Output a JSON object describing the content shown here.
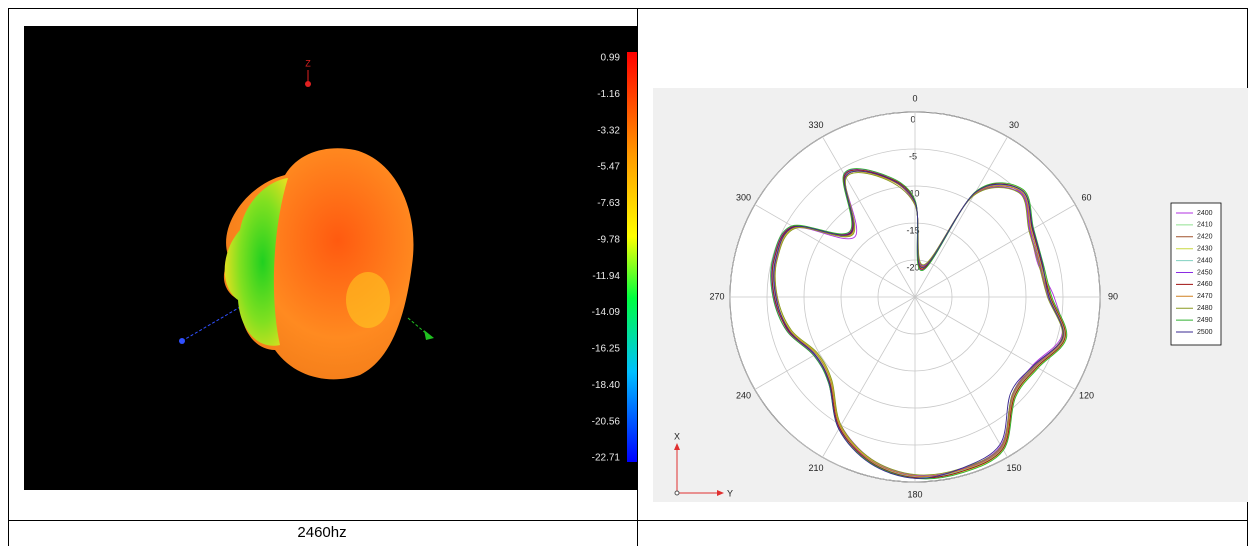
{
  "left_panel": {
    "axis_label": "Z",
    "colorbar_labels": [
      "0.99",
      "-1.16",
      "-3.32",
      "-5.47",
      "-7.63",
      "-9.78",
      "-11.94",
      "-14.09",
      "-16.25",
      "-18.40",
      "-20.56",
      "-22.71"
    ]
  },
  "caption": "2460hz",
  "chart_data": {
    "type": "polar",
    "theta": [
      0,
      15,
      30,
      45,
      60,
      75,
      90,
      105,
      120,
      135,
      150,
      165,
      180,
      195,
      210,
      225,
      240,
      255,
      270,
      285,
      300,
      315,
      330,
      345
    ],
    "angle_ticks": [
      0,
      30,
      60,
      90,
      120,
      150,
      180,
      210,
      240,
      270,
      300,
      330
    ],
    "rlim": [
      -25,
      0
    ],
    "rticks": [
      -20,
      -15,
      -10,
      -5,
      0
    ],
    "axis_labels": {
      "x": "X",
      "y": "Y"
    },
    "series": [
      {
        "name": "2400",
        "color": "#b030e0",
        "values": [
          -12.0,
          -21.2,
          -8.6,
          -4.9,
          -7.0,
          -7.8,
          -6.2,
          -4.5,
          -6.6,
          -6.4,
          -1.8,
          -0.9,
          -0.9,
          -2.3,
          -5.0,
          -8.6,
          -9.2,
          -7.2,
          -6.3,
          -5.6,
          -6.4,
          -13.5,
          -6.3,
          -8.0
        ]
      },
      {
        "name": "2410",
        "color": "#90e090",
        "values": [
          -12.3,
          -20.8,
          -8.9,
          -4.6,
          -6.7,
          -7.3,
          -6.7,
          -4.0,
          -6.0,
          -6.2,
          -1.3,
          -0.6,
          -0.8,
          -2.1,
          -4.6,
          -8.9,
          -9.6,
          -7.5,
          -6.0,
          -5.3,
          -6.0,
          -12.7,
          -6.0,
          -8.2
        ]
      },
      {
        "name": "2420",
        "color": "#a0522d",
        "values": [
          -12.4,
          -20.7,
          -9.0,
          -4.8,
          -6.9,
          -7.5,
          -6.9,
          -4.2,
          -6.2,
          -6.0,
          -1.5,
          -0.8,
          -0.6,
          -1.9,
          -4.8,
          -8.7,
          -9.4,
          -7.3,
          -6.2,
          -5.5,
          -6.2,
          -12.9,
          -6.2,
          -8.0
        ]
      },
      {
        "name": "2430",
        "color": "#c8d840",
        "values": [
          -12.1,
          -21.0,
          -8.7,
          -4.5,
          -6.6,
          -7.2,
          -6.6,
          -3.9,
          -5.9,
          -5.9,
          -1.2,
          -0.5,
          -0.7,
          -2.2,
          -4.9,
          -9.0,
          -9.7,
          -7.6,
          -6.4,
          -5.7,
          -6.3,
          -13.0,
          -6.4,
          -8.3
        ]
      },
      {
        "name": "2440",
        "color": "#80d0c0",
        "values": [
          -12.2,
          -20.9,
          -8.8,
          -4.7,
          -6.8,
          -7.4,
          -6.8,
          -4.1,
          -6.1,
          -6.1,
          -1.4,
          -0.7,
          -0.7,
          -2.0,
          -4.7,
          -8.8,
          -9.5,
          -7.4,
          -6.1,
          -5.4,
          -6.1,
          -12.8,
          -6.1,
          -8.1
        ]
      },
      {
        "name": "2450",
        "color": "#8a2be2",
        "values": [
          -12.5,
          -20.6,
          -9.1,
          -5.0,
          -7.1,
          -7.6,
          -7.0,
          -4.3,
          -6.3,
          -6.3,
          -1.6,
          -0.9,
          -0.8,
          -2.1,
          -4.5,
          -8.5,
          -9.3,
          -7.1,
          -5.9,
          -5.2,
          -5.9,
          -12.6,
          -5.9,
          -7.9
        ]
      },
      {
        "name": "2460",
        "color": "#a01010",
        "values": [
          -12.0,
          -21.1,
          -8.6,
          -4.6,
          -6.7,
          -7.3,
          -6.7,
          -4.0,
          -6.0,
          -6.0,
          -1.3,
          -0.6,
          -0.6,
          -1.9,
          -4.6,
          -8.7,
          -9.4,
          -7.3,
          -6.0,
          -5.3,
          -6.0,
          -12.7,
          -6.0,
          -8.0
        ]
      },
      {
        "name": "2470",
        "color": "#d08020",
        "values": [
          -12.3,
          -20.8,
          -8.9,
          -4.8,
          -6.9,
          -7.5,
          -6.9,
          -4.2,
          -6.2,
          -6.2,
          -1.5,
          -0.8,
          -0.8,
          -2.1,
          -4.8,
          -8.9,
          -9.6,
          -7.5,
          -6.2,
          -5.5,
          -6.2,
          -12.9,
          -6.2,
          -8.2
        ]
      },
      {
        "name": "2480",
        "color": "#8a9a20",
        "values": [
          -12.6,
          -20.5,
          -9.2,
          -5.1,
          -7.2,
          -7.7,
          -7.1,
          -4.4,
          -6.4,
          -6.4,
          -1.7,
          -1.0,
          -1.0,
          -2.3,
          -5.0,
          -9.1,
          -9.8,
          -7.7,
          -6.4,
          -5.7,
          -6.4,
          -13.1,
          -6.4,
          -8.4
        ]
      },
      {
        "name": "2490",
        "color": "#30b030",
        "values": [
          -11.9,
          -21.3,
          -8.5,
          -4.4,
          -6.5,
          -7.1,
          -6.5,
          -3.8,
          -5.8,
          -5.8,
          -1.1,
          -0.4,
          -0.5,
          -1.8,
          -4.4,
          -8.5,
          -9.2,
          -7.1,
          -5.8,
          -5.1,
          -5.8,
          -12.5,
          -5.8,
          -7.8
        ]
      },
      {
        "name": "2500",
        "color": "#3a2a90",
        "values": [
          -12.2,
          -20.9,
          -8.7,
          -4.6,
          -6.6,
          -7.2,
          -6.9,
          -4.3,
          -6.5,
          -6.7,
          -2.0,
          -1.0,
          -0.5,
          -1.7,
          -4.4,
          -8.6,
          -9.4,
          -7.4,
          -6.2,
          -5.5,
          -6.1,
          -12.8,
          -6.2,
          -8.1
        ]
      }
    ]
  }
}
